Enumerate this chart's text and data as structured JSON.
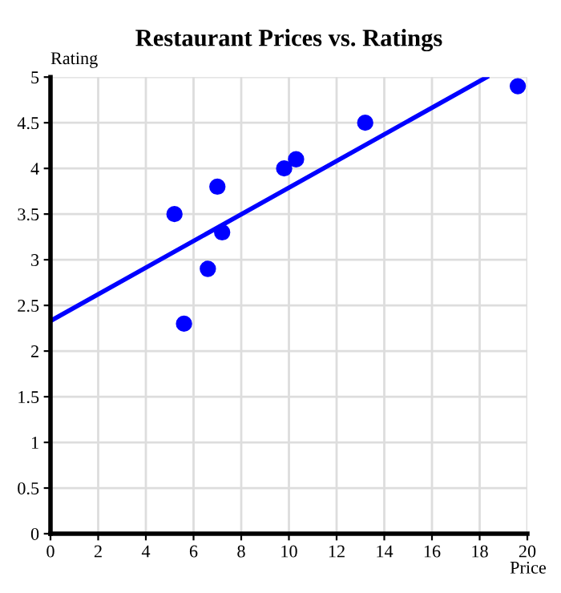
{
  "chart_data": {
    "type": "scatter",
    "title": "Restaurant Prices vs. Ratings",
    "xlabel": "Price",
    "ylabel": "Rating",
    "xlim": [
      0,
      20
    ],
    "ylim": [
      0,
      5
    ],
    "xticks": [
      0,
      2,
      4,
      6,
      8,
      10,
      12,
      14,
      16,
      18,
      20
    ],
    "yticks": [
      0,
      0.5,
      1,
      1.5,
      2,
      2.5,
      3,
      3.5,
      4,
      4.5,
      5
    ],
    "grid": true,
    "series": [
      {
        "marker": "circle",
        "color": "#0000ff",
        "x": [
          5.2,
          5.6,
          6.6,
          7.0,
          7.2,
          9.8,
          10.3,
          13.2,
          19.6
        ],
        "values": [
          3.5,
          2.3,
          2.9,
          3.8,
          3.3,
          4.0,
          4.1,
          4.5,
          4.9
        ]
      },
      {
        "type": "line",
        "color": "#0000ff",
        "x": [
          0,
          18.3
        ],
        "values": [
          2.33,
          5.0
        ]
      }
    ]
  }
}
